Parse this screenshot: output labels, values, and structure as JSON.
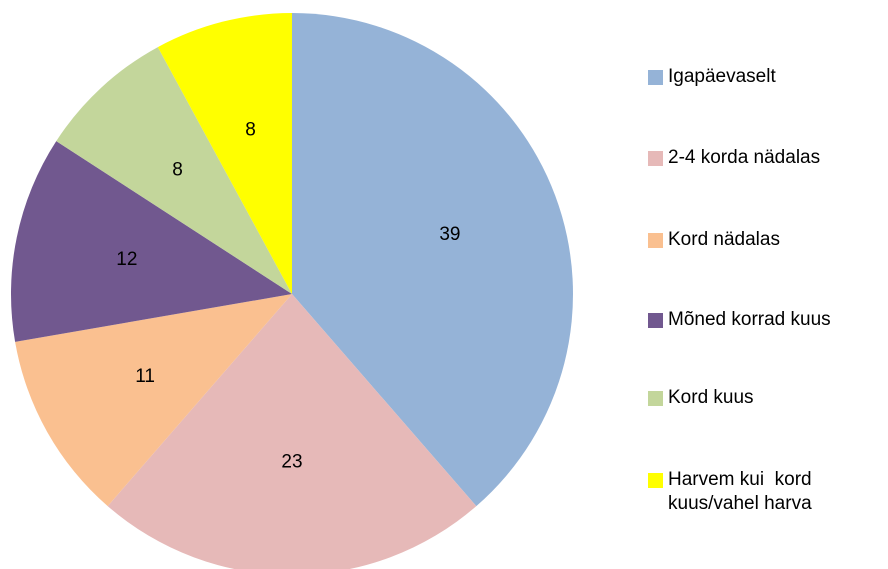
{
  "chart_data": {
    "type": "pie",
    "categories": [
      "Igapäevaselt",
      "2-4 korda nädalas",
      "Kord nädalas",
      "Mõned korrad kuus",
      "Kord kuus",
      "Harvem kui  kord kuus/vahel harva"
    ],
    "values": [
      39,
      23,
      11,
      12,
      8,
      8
    ],
    "colors": [
      "#95b3d7",
      "#e6b9b8",
      "#fac090",
      "#71588f",
      "#c3d69b",
      "#ffff00"
    ],
    "legend": "right"
  }
}
